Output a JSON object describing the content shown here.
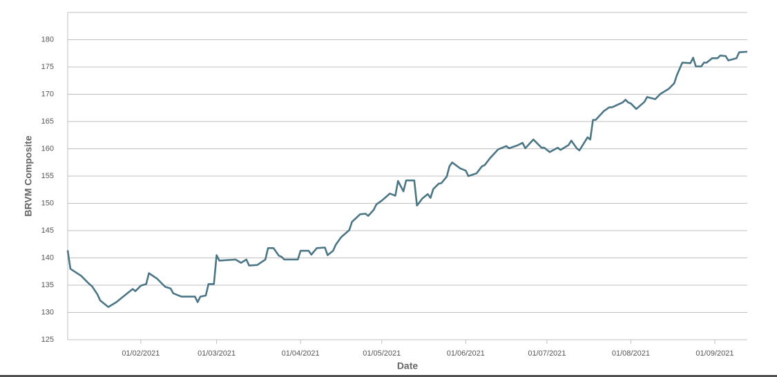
{
  "chart_data": {
    "type": "line",
    "x_label": "Date",
    "y_label": "BRVM Composite",
    "xlim": [
      "2021-01-05",
      "2021-09-13"
    ],
    "xticks": [
      {
        "value": "2021-02-01",
        "label": "01/02/2021"
      },
      {
        "value": "2021-03-01",
        "label": "01/03/2021"
      },
      {
        "value": "2021-04-01",
        "label": "01/04/2021"
      },
      {
        "value": "2021-05-01",
        "label": "01/05/2021"
      },
      {
        "value": "2021-06-01",
        "label": "01/06/2021"
      },
      {
        "value": "2021-07-01",
        "label": "01/07/2021"
      },
      {
        "value": "2021-08-01",
        "label": "01/08/2021"
      },
      {
        "value": "2021-09-01",
        "label": "01/09/2021"
      }
    ],
    "ylim": [
      125,
      185
    ],
    "yticks": [
      125,
      130,
      135,
      140,
      145,
      150,
      155,
      160,
      165,
      170,
      175,
      180
    ],
    "grid": true,
    "x": [
      "2021-01-05",
      "2021-01-06",
      "2021-01-10",
      "2021-01-13",
      "2021-01-14",
      "2021-01-16",
      "2021-01-17",
      "2021-01-20",
      "2021-01-23",
      "2021-01-26",
      "2021-01-29",
      "2021-01-30",
      "2021-02-01",
      "2021-02-03",
      "2021-02-04",
      "2021-02-07",
      "2021-02-10",
      "2021-02-12",
      "2021-02-13",
      "2021-02-16",
      "2021-02-21",
      "2021-02-22",
      "2021-02-23",
      "2021-02-25",
      "2021-02-26",
      "2021-02-28",
      "2021-03-01",
      "2021-03-02",
      "2021-03-08",
      "2021-03-10",
      "2021-03-12",
      "2021-03-13",
      "2021-03-16",
      "2021-03-19",
      "2021-03-20",
      "2021-03-22",
      "2021-03-24",
      "2021-03-25",
      "2021-03-26",
      "2021-03-31",
      "2021-04-01",
      "2021-04-04",
      "2021-04-05",
      "2021-04-07",
      "2021-04-10",
      "2021-04-11",
      "2021-04-13",
      "2021-04-14",
      "2021-04-16",
      "2021-04-19",
      "2021-04-20",
      "2021-04-23",
      "2021-04-25",
      "2021-04-26",
      "2021-04-28",
      "2021-04-29",
      "2021-05-01",
      "2021-05-04",
      "2021-05-06",
      "2021-05-07",
      "2021-05-09",
      "2021-05-10",
      "2021-05-13",
      "2021-05-14",
      "2021-05-16",
      "2021-05-18",
      "2021-05-19",
      "2021-05-20",
      "2021-05-22",
      "2021-05-23",
      "2021-05-25",
      "2021-05-26",
      "2021-05-27",
      "2021-05-30",
      "2021-06-01",
      "2021-06-02",
      "2021-06-05",
      "2021-06-07",
      "2021-06-08",
      "2021-06-10",
      "2021-06-13",
      "2021-06-16",
      "2021-06-17",
      "2021-06-20",
      "2021-06-22",
      "2021-06-23",
      "2021-06-26",
      "2021-06-29",
      "2021-06-30",
      "2021-07-02",
      "2021-07-05",
      "2021-07-06",
      "2021-07-09",
      "2021-07-10",
      "2021-07-12",
      "2021-07-13",
      "2021-07-15",
      "2021-07-16",
      "2021-07-17",
      "2021-07-18",
      "2021-07-19",
      "2021-07-22",
      "2021-07-24",
      "2021-07-25",
      "2021-07-29",
      "2021-07-30",
      "2021-07-31",
      "2021-08-01",
      "2021-08-03",
      "2021-08-06",
      "2021-08-07",
      "2021-08-10",
      "2021-08-12",
      "2021-08-15",
      "2021-08-17",
      "2021-08-18",
      "2021-08-20",
      "2021-08-23",
      "2021-08-24",
      "2021-08-25",
      "2021-08-27",
      "2021-08-28",
      "2021-08-29",
      "2021-08-31",
      "2021-09-02",
      "2021-09-03",
      "2021-09-05",
      "2021-09-06",
      "2021-09-09",
      "2021-09-10",
      "2021-09-13"
    ],
    "series": [
      {
        "name": "BRVM Composite",
        "color": "#4a7585",
        "values": [
          141.4,
          138,
          136.7,
          135.2,
          134.8,
          133.3,
          132.2,
          131,
          131.9,
          133.1,
          134.3,
          133.9,
          134.9,
          135.2,
          137.2,
          136.2,
          134.7,
          134.4,
          133.5,
          132.9,
          132.9,
          131.9,
          132.9,
          133.1,
          135.2,
          135.2,
          140.5,
          139.5,
          139.7,
          139.1,
          139.7,
          138.6,
          138.7,
          139.7,
          141.8,
          141.8,
          140.4,
          140.2,
          139.7,
          139.7,
          141.3,
          141.3,
          140.6,
          141.8,
          141.9,
          140.5,
          141.3,
          142.4,
          143.8,
          145.1,
          146.6,
          148,
          148.1,
          147.7,
          148.8,
          149.8,
          150.5,
          151.8,
          151.4,
          154.1,
          152.2,
          154.2,
          154.2,
          149.6,
          150.9,
          151.7,
          151,
          152.6,
          153.6,
          153.7,
          154.9,
          156.8,
          157.5,
          156.4,
          156,
          155,
          155.5,
          156.8,
          157,
          158.3,
          159.9,
          160.5,
          160.1,
          160.6,
          161.1,
          160.1,
          161.7,
          160.2,
          160.2,
          159.4,
          160.2,
          159.8,
          160.7,
          161.5,
          160.1,
          159.7,
          161.3,
          162.1,
          161.7,
          165.3,
          165.3,
          166.9,
          167.6,
          167.6,
          168.5,
          169,
          168.5,
          168.3,
          167.3,
          168.6,
          169.5,
          169.1,
          170.1,
          171,
          172,
          173.5,
          175.8,
          175.7,
          176.7,
          175.1,
          175.1,
          175.8,
          175.8,
          176.6,
          176.6,
          177.1,
          177,
          176.2,
          176.6,
          177.7,
          177.8
        ]
      }
    ]
  }
}
